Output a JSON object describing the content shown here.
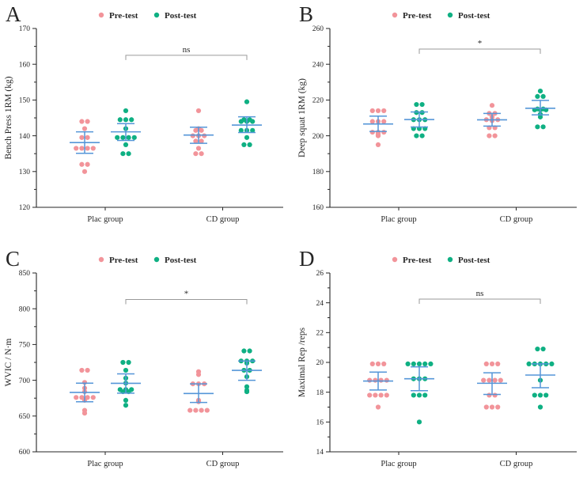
{
  "figure": {
    "background": "#ffffff",
    "colors": {
      "pre": "#F2949A",
      "post": "#0FB083",
      "error_bar": "#5596D8",
      "bracket": "#9a9a9a",
      "text": "#262626"
    },
    "legend": {
      "pre_label": "Pre-test",
      "post_label": "Post-test"
    },
    "x_categories": [
      "Plac group",
      "CD group"
    ]
  },
  "chart_data": [
    {
      "panel": "A",
      "type": "scatter",
      "ylabel": "Bench Press 1RM (kg)",
      "ylim": [
        120,
        170
      ],
      "ytick_step": 10,
      "yminor_step": 5,
      "categories": [
        "Plac group",
        "CD group"
      ],
      "legend": [
        "Pre-test",
        "Post-test"
      ],
      "significance": {
        "label": "ns",
        "y": 162.5,
        "from": "Plac group Post-test",
        "to": "CD group Post-test"
      },
      "series": [
        {
          "name": "Plac group Pre-test",
          "group": 0,
          "condition": "pre",
          "values": [
            144,
            144,
            142,
            139.5,
            139.5,
            136.5,
            136.5,
            136.5,
            136.5,
            132,
            132,
            130
          ],
          "mean": 138.1,
          "err_low": 135.1,
          "err_high": 141.1
        },
        {
          "name": "Plac group Post-test",
          "group": 0,
          "condition": "post",
          "values": [
            147,
            144.5,
            144.5,
            144.5,
            142,
            139.5,
            139.5,
            139.5,
            139.5,
            137.5,
            135,
            135
          ],
          "mean": 141.1,
          "err_low": 138.7,
          "err_high": 143.4
        },
        {
          "name": "CD group Pre-test",
          "group": 1,
          "condition": "pre",
          "values": [
            147,
            142,
            141.5,
            141.5,
            140,
            140,
            140,
            138.5,
            138.5,
            136.5,
            135,
            135
          ],
          "mean": 140.2,
          "err_low": 137.9,
          "err_high": 142.4
        },
        {
          "name": "CD group Post-test",
          "group": 1,
          "condition": "post",
          "values": [
            149.5,
            144.5,
            144.5,
            144,
            144,
            144,
            141.5,
            141.5,
            141.5,
            139.5,
            137.5,
            137.5
          ],
          "mean": 143.0,
          "err_low": 140.9,
          "err_high": 145.3
        }
      ]
    },
    {
      "panel": "B",
      "type": "scatter",
      "ylabel": "Deep squat 1RM (kg)",
      "ylim": [
        160,
        260
      ],
      "ytick_step": 20,
      "yminor_step": 10,
      "categories": [
        "Plac group",
        "CD group"
      ],
      "legend": [
        "Pre-test",
        "Post-test"
      ],
      "significance": {
        "label": "*",
        "y": 248.5,
        "from": "Plac group Post-test",
        "to": "CD group Post-test"
      },
      "series": [
        {
          "name": "Plac group Pre-test",
          "group": 0,
          "condition": "pre",
          "values": [
            214,
            214,
            214,
            208,
            208,
            208,
            202,
            202,
            202,
            201,
            200,
            195
          ],
          "mean": 206.6,
          "err_low": 202.4,
          "err_high": 211.0
        },
        {
          "name": "Plac group Post-test",
          "group": 0,
          "condition": "post",
          "values": [
            217.5,
            217.5,
            213,
            213,
            209,
            209,
            209,
            204,
            204,
            204,
            200,
            200
          ],
          "mean": 209.1,
          "err_low": 204.9,
          "err_high": 213.3
        },
        {
          "name": "CD group Pre-test",
          "group": 1,
          "condition": "pre",
          "values": [
            217,
            212.5,
            212.5,
            210.5,
            209,
            209,
            209,
            208.5,
            204.5,
            204.5,
            200,
            200
          ],
          "mean": 208.9,
          "err_low": 205.4,
          "err_high": 212.5
        },
        {
          "name": "CD group Post-test",
          "group": 1,
          "condition": "post",
          "values": [
            225,
            222,
            222,
            215,
            215,
            214.5,
            214.5,
            214.5,
            212,
            210.5,
            205,
            205
          ],
          "mean": 215.4,
          "err_low": 211.7,
          "err_high": 219.8
        }
      ]
    },
    {
      "panel": "C",
      "type": "scatter",
      "ylabel": "WVIC / N·m",
      "ylim": [
        600,
        850
      ],
      "ytick_step": 50,
      "yminor_step": 25,
      "categories": [
        "Plac group",
        "CD group"
      ],
      "legend": [
        "Pre-test",
        "Post-test"
      ],
      "significance": {
        "label": "*",
        "y": 813,
        "from": "Plac group Post-test",
        "to": "CD group Post-test"
      },
      "series": [
        {
          "name": "Plac group Pre-test",
          "group": 0,
          "condition": "pre",
          "values": [
            714,
            714,
            697,
            689,
            684,
            676,
            676,
            676,
            676,
            672,
            658,
            654
          ],
          "mean": 683.0,
          "err_low": 670.0,
          "err_high": 696.0
        },
        {
          "name": "Plac group Post-test",
          "group": 0,
          "condition": "post",
          "values": [
            725,
            725,
            714,
            703,
            696,
            687,
            687,
            687,
            684,
            684,
            672,
            665
          ],
          "mean": 695.8,
          "err_low": 682.0,
          "err_high": 709.0
        },
        {
          "name": "CD group Pre-test",
          "group": 1,
          "condition": "pre",
          "values": [
            712,
            708,
            695,
            695,
            695,
            672,
            671,
            670,
            658,
            658,
            658,
            658
          ],
          "mean": 681.5,
          "err_low": 669.0,
          "err_high": 695.0
        },
        {
          "name": "CD group Post-test",
          "group": 1,
          "condition": "post",
          "values": [
            741,
            741,
            727,
            727,
            727,
            724,
            714,
            714,
            705,
            691,
            686,
            684
          ],
          "mean": 713.9,
          "err_low": 700.0,
          "err_high": 727.0
        }
      ]
    },
    {
      "panel": "D",
      "type": "scatter",
      "ylabel": "Maximal Rep /reps",
      "ylim": [
        14,
        26
      ],
      "ytick_step": 2,
      "yminor_step": 1,
      "categories": [
        "Plac group",
        "CD group"
      ],
      "legend": [
        "Pre-test",
        "Post-test"
      ],
      "significance": {
        "label": "ns",
        "y": 24.25,
        "from": "Plac group Post-test",
        "to": "CD group Post-test"
      },
      "series": [
        {
          "name": "Plac group Pre-test",
          "group": 0,
          "condition": "pre",
          "values": [
            19.9,
            19.9,
            19.9,
            18.8,
            18.8,
            18.8,
            18.8,
            17.8,
            17.8,
            17.8,
            17.8,
            17
          ],
          "mean": 18.75,
          "err_low": 18.15,
          "err_high": 19.35
        },
        {
          "name": "Plac group Post-test",
          "group": 0,
          "condition": "post",
          "values": [
            19.9,
            19.9,
            19.9,
            19.9,
            19.9,
            18.9,
            18.9,
            18.9,
            17.8,
            17.8,
            17.8,
            16
          ],
          "mean": 18.9,
          "err_low": 18.1,
          "err_high": 19.7
        },
        {
          "name": "CD group Pre-test",
          "group": 1,
          "condition": "pre",
          "values": [
            19.9,
            19.9,
            19.9,
            18.8,
            18.8,
            18.8,
            18.8,
            17.8,
            17.8,
            17,
            17,
            17
          ],
          "mean": 18.6,
          "err_low": 17.85,
          "err_high": 19.3
        },
        {
          "name": "CD group Post-test",
          "group": 1,
          "condition": "post",
          "values": [
            20.9,
            20.9,
            19.9,
            19.9,
            19.9,
            19.9,
            19.9,
            18.8,
            17.8,
            17.8,
            17.8,
            17
          ],
          "mean": 19.15,
          "err_low": 18.3,
          "err_high": 19.9
        }
      ]
    }
  ]
}
